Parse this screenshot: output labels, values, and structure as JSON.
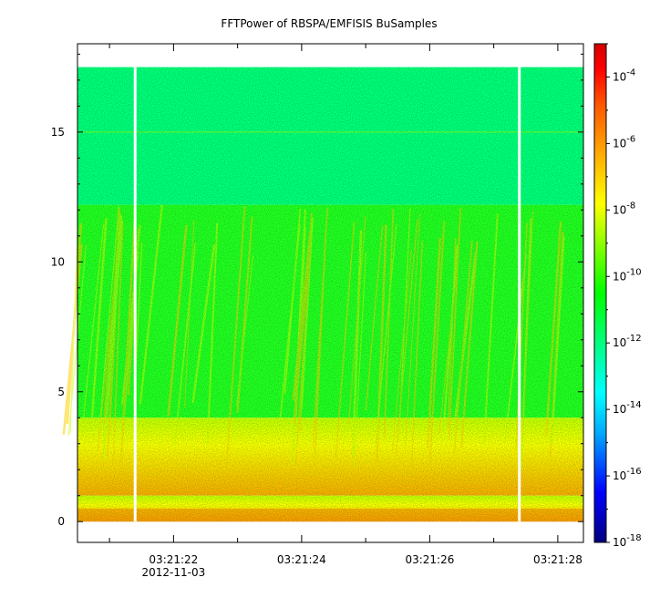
{
  "chart_data": {
    "type": "heatmap",
    "title": "FFTPower of RBSPA/EMFISIS  BuSamples",
    "xlabel": "",
    "ylabel": "",
    "x_axis": {
      "range_seconds": [
        "03:21:20.5",
        "03:21:28.4"
      ],
      "major_ticks": [
        {
          "time": "03:21:22",
          "label": "03:21:22",
          "sublabel": "2012-11-03"
        },
        {
          "time": "03:21:24",
          "label": "03:21:24",
          "sublabel": ""
        },
        {
          "time": "03:21:26",
          "label": "03:21:26",
          "sublabel": ""
        },
        {
          "time": "03:21:28",
          "label": "03:21:28",
          "sublabel": ""
        }
      ],
      "minor_ticks": [
        "03:21:21",
        "03:21:23",
        "03:21:25",
        "03:21:27"
      ]
    },
    "y_axis": {
      "range": [
        -0.8,
        18.4
      ],
      "ticks": [
        0,
        5,
        10,
        15
      ],
      "tick_labels": [
        "0",
        "5",
        "10",
        "15"
      ]
    },
    "colorbar": {
      "scale": "log",
      "range": [
        1e-18,
        0.001
      ],
      "tick_exponents": [
        -18,
        -16,
        -14,
        -12,
        -10,
        -8,
        -6,
        -4
      ],
      "tick_base": "10",
      "colormap": [
        "#00007f",
        "#0000ff",
        "#00aaff",
        "#00ffff",
        "#00ff7f",
        "#00ff00",
        "#aaff00",
        "#ffff00",
        "#ffaa00",
        "#ff5500",
        "#ff0000",
        "#d40000"
      ]
    },
    "data_region": {
      "frequency_max": 17.5,
      "bands": [
        {
          "from": 12.2,
          "to": 17.5,
          "level": "1e-11",
          "color": "#00ff7f"
        },
        {
          "from": 4.0,
          "to": 12.2,
          "level": "1e-10",
          "color": "#22ff22"
        },
        {
          "from": 1.0,
          "to": 4.0,
          "level": "1e-8",
          "color": "#ffff00"
        },
        {
          "from": 0.0,
          "to": 1.0,
          "level": "1e-7",
          "color": "#ff9a00"
        }
      ],
      "data_gaps": [
        "03:21:21.4",
        "03:21:27.4"
      ],
      "line_feature_frequency": 15
    }
  }
}
